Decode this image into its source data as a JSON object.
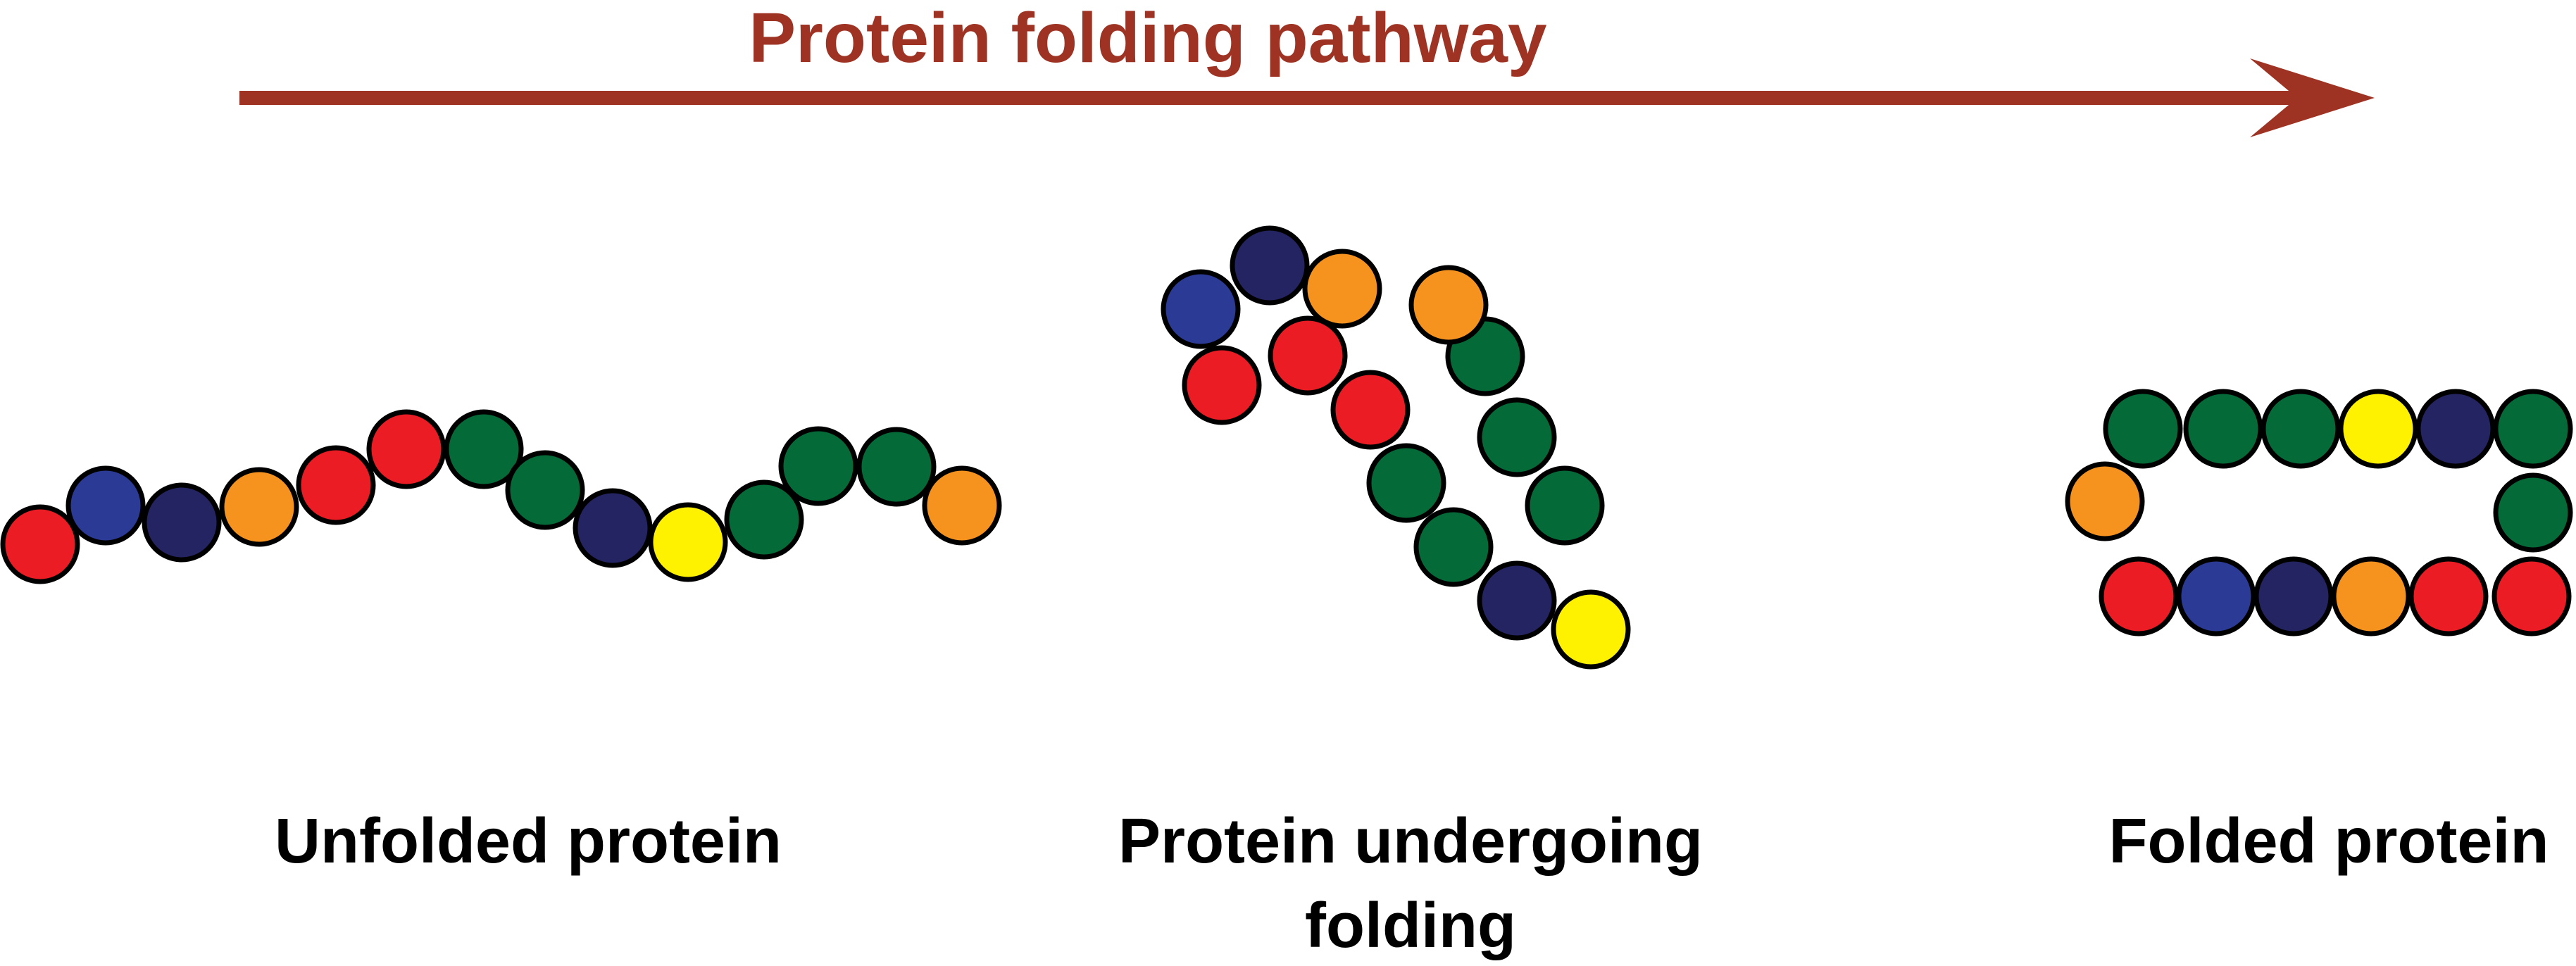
{
  "title": "Protein folding pathway",
  "colors": {
    "title": "#9e3324",
    "arrow": "#9e3324",
    "red": "#ec1c24",
    "blue": "#2b3a95",
    "navy": "#252462",
    "orange": "#f6921e",
    "green": "#046a38",
    "yellow": "#fff200"
  },
  "stages": [
    {
      "key": "unfolded",
      "label_lines": [
        "Unfolded protein"
      ],
      "beads": [
        "red",
        "blue",
        "navy",
        "orange",
        "red",
        "red",
        "green",
        "green",
        "navy",
        "yellow",
        "green",
        "green",
        "green",
        "orange"
      ]
    },
    {
      "key": "folding",
      "label_lines": [
        "Protein undergoing",
        "folding"
      ],
      "beads": [
        "red",
        "blue",
        "navy",
        "orange",
        "red",
        "red",
        "green",
        "green",
        "navy",
        "yellow",
        "green",
        "green",
        "green",
        "orange"
      ]
    },
    {
      "key": "folded",
      "label_lines": [
        "Folded protein"
      ],
      "beads": [
        "red",
        "blue",
        "navy",
        "orange",
        "red",
        "red",
        "green",
        "green",
        "navy",
        "yellow",
        "green",
        "green",
        "green",
        "orange"
      ]
    }
  ]
}
